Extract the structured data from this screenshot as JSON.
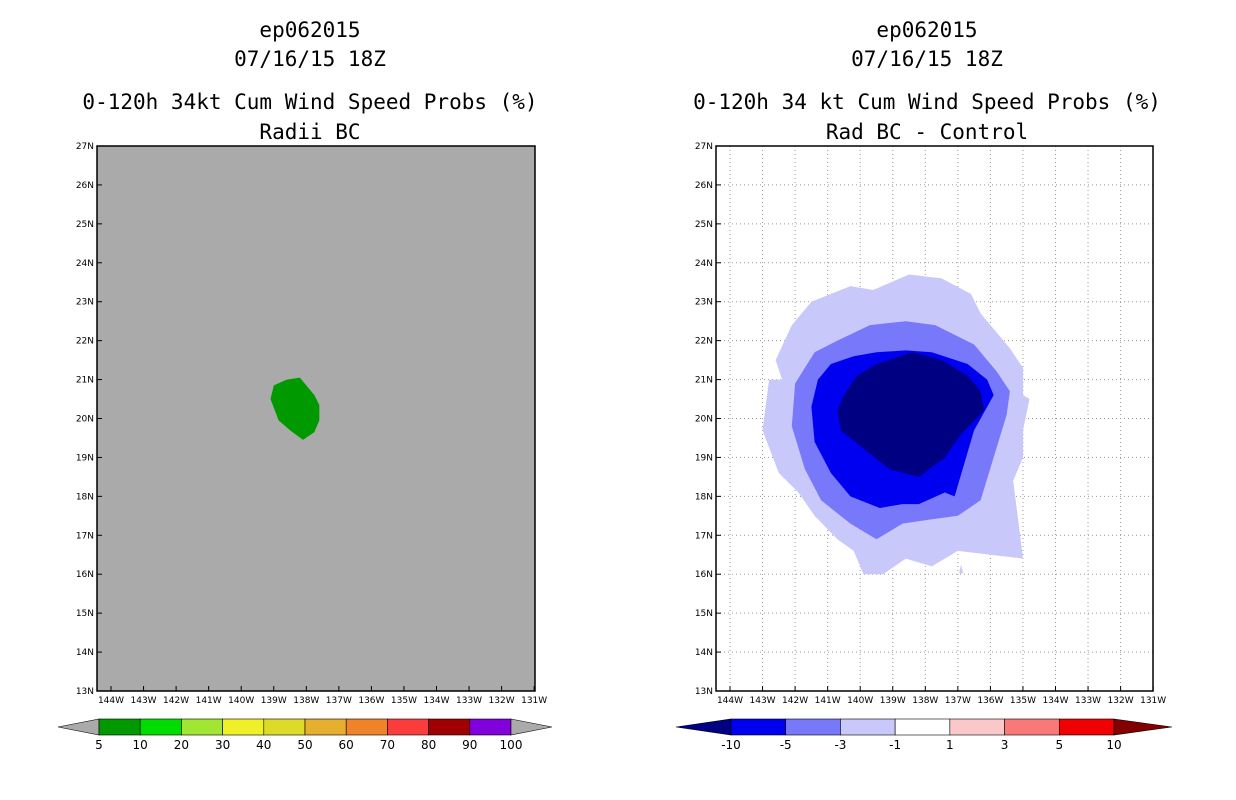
{
  "chart_data": [
    {
      "type": "heatmap",
      "title": "ep062015",
      "subtitle": "07/16/15 18Z",
      "product": "0-120h 34kt Cum Wind Speed Probs (%)",
      "panel_label": "Radii BC",
      "background_color": "#aaaaaa",
      "xlim": [
        -144.5,
        -130.9
      ],
      "ylim": [
        13,
        27
      ],
      "x_tick_labels": [
        "144W",
        "143W",
        "142W",
        "141W",
        "140W",
        "139W",
        "138W",
        "137W",
        "136W",
        "135W",
        "134W",
        "133W",
        "132W",
        "131W"
      ],
      "y_tick_labels": [
        "13N",
        "14N",
        "15N",
        "16N",
        "17N",
        "18N",
        "19N",
        "20N",
        "21N",
        "22N",
        "23N",
        "24N",
        "25N",
        "26N",
        "27N"
      ],
      "grid": false,
      "contours": [
        {
          "level": "5-10",
          "color": "#009a00",
          "lon": [
            -138.2,
            -137.75,
            -137.6,
            -137.6,
            -137.75,
            -138.1,
            -138.5,
            -138.85,
            -139.1,
            -139.0,
            -138.6
          ],
          "lat": [
            21.05,
            20.6,
            20.35,
            19.95,
            19.65,
            19.45,
            19.7,
            19.95,
            20.5,
            20.85,
            21.0
          ]
        }
      ],
      "colorbar": {
        "labels": [
          "5",
          "10",
          "20",
          "30",
          "40",
          "50",
          "60",
          "70",
          "80",
          "90",
          "100"
        ],
        "colors": [
          "#009a00",
          "#00dc00",
          "#a0e632",
          "#f0f028",
          "#dcdc28",
          "#e6af2d",
          "#f08228",
          "#fa3c3c",
          "#a00000",
          "#8200dc"
        ],
        "under_color": "#aaaaaa",
        "over_color": "#aaaaaa"
      }
    },
    {
      "type": "heatmap",
      "title": "ep062015",
      "subtitle": "07/16/15 18Z",
      "product": "0-120h 34 kt Cum Wind Speed Probs (%)",
      "panel_label": "Rad BC - Control",
      "background_color": "#ffffff",
      "xlim": [
        -144.5,
        -130.9
      ],
      "ylim": [
        13,
        27
      ],
      "x_tick_labels": [
        "144W",
        "143W",
        "142W",
        "141W",
        "140W",
        "139W",
        "138W",
        "137W",
        "136W",
        "135W",
        "134W",
        "133W",
        "132W",
        "131W"
      ],
      "y_tick_labels": [
        "13N",
        "14N",
        "15N",
        "16N",
        "17N",
        "18N",
        "19N",
        "20N",
        "21N",
        "22N",
        "23N",
        "24N",
        "25N",
        "26N",
        "27N"
      ],
      "grid": true,
      "contours": [
        {
          "level": "-3 to -1",
          "color": "#c8c8fa",
          "lon": [
            -139.6,
            -138.5,
            -137.5,
            -136.6,
            -136.3,
            -135.4,
            -135.0,
            -135.0,
            -134.8,
            -135.0,
            -135.0,
            -135.3,
            -135.0,
            -136.0,
            -137.0,
            -137.8,
            -138.6,
            -139.3,
            -139.9,
            -140.2,
            -140.7,
            -141.4,
            -141.9,
            -142.5,
            -143.0,
            -142.8,
            -142.4,
            -142.6,
            -142.1,
            -141.5,
            -140.3
          ],
          "lat": [
            23.3,
            23.7,
            23.6,
            23.2,
            22.7,
            21.8,
            21.3,
            20.6,
            20.5,
            19.7,
            19.0,
            18.4,
            16.4,
            16.5,
            16.6,
            16.2,
            16.4,
            16.0,
            16.0,
            16.6,
            16.9,
            17.5,
            18.1,
            18.6,
            19.7,
            21.0,
            21.0,
            21.5,
            22.4,
            23.0,
            23.4
          ]
        },
        {
          "level": "-5 to -3",
          "color": "#7878fa",
          "lon": [
            -139.7,
            -138.6,
            -137.7,
            -136.5,
            -135.8,
            -135.4,
            -135.5,
            -136.3,
            -137.0,
            -137.9,
            -138.7,
            -139.5,
            -140.3,
            -141.2,
            -141.7,
            -142.1,
            -142.0,
            -141.4,
            -140.7
          ],
          "lat": [
            22.4,
            22.5,
            22.4,
            21.9,
            21.2,
            20.7,
            20.1,
            17.9,
            17.5,
            17.4,
            17.3,
            16.9,
            17.3,
            17.9,
            18.7,
            19.8,
            20.9,
            21.7,
            22.0
          ]
        },
        {
          "level": "-10 to -5",
          "color": "#0000f0",
          "lon": [
            -139.5,
            -138.6,
            -137.8,
            -136.7,
            -136.1,
            -135.9,
            -136.5,
            -137.1,
            -137.4,
            -138.2,
            -138.7,
            -139.4,
            -140.3,
            -140.9,
            -141.4,
            -141.5,
            -141.3,
            -140.9,
            -140.2
          ],
          "lat": [
            21.7,
            21.75,
            21.7,
            21.4,
            21.0,
            20.6,
            19.7,
            18.0,
            18.1,
            17.8,
            17.8,
            17.7,
            18.0,
            18.6,
            19.4,
            20.3,
            21.0,
            21.4,
            21.6
          ]
        },
        {
          "level": "< -10",
          "color": "#000082",
          "lon": [
            -139.5,
            -138.4,
            -137.5,
            -136.7,
            -136.3,
            -136.2,
            -136.9,
            -137.4,
            -138.2,
            -139.1,
            -140.0,
            -140.6,
            -140.7,
            -140.5,
            -140.1
          ],
          "lat": [
            21.4,
            21.7,
            21.5,
            21.1,
            20.7,
            20.2,
            19.6,
            19.0,
            18.5,
            18.7,
            19.3,
            19.7,
            20.2,
            20.6,
            21.1
          ]
        }
      ],
      "colorbar": {
        "labels": [
          "-10",
          "-5",
          "-3",
          "-1",
          "1",
          "3",
          "5",
          "10"
        ],
        "colors": [
          "#0000f0",
          "#7878fa",
          "#c8c8fa",
          "#ffffff",
          "#fac8c8",
          "#fa7878",
          "#f00000"
        ],
        "under_color": "#000082",
        "over_color": "#820000"
      }
    }
  ]
}
